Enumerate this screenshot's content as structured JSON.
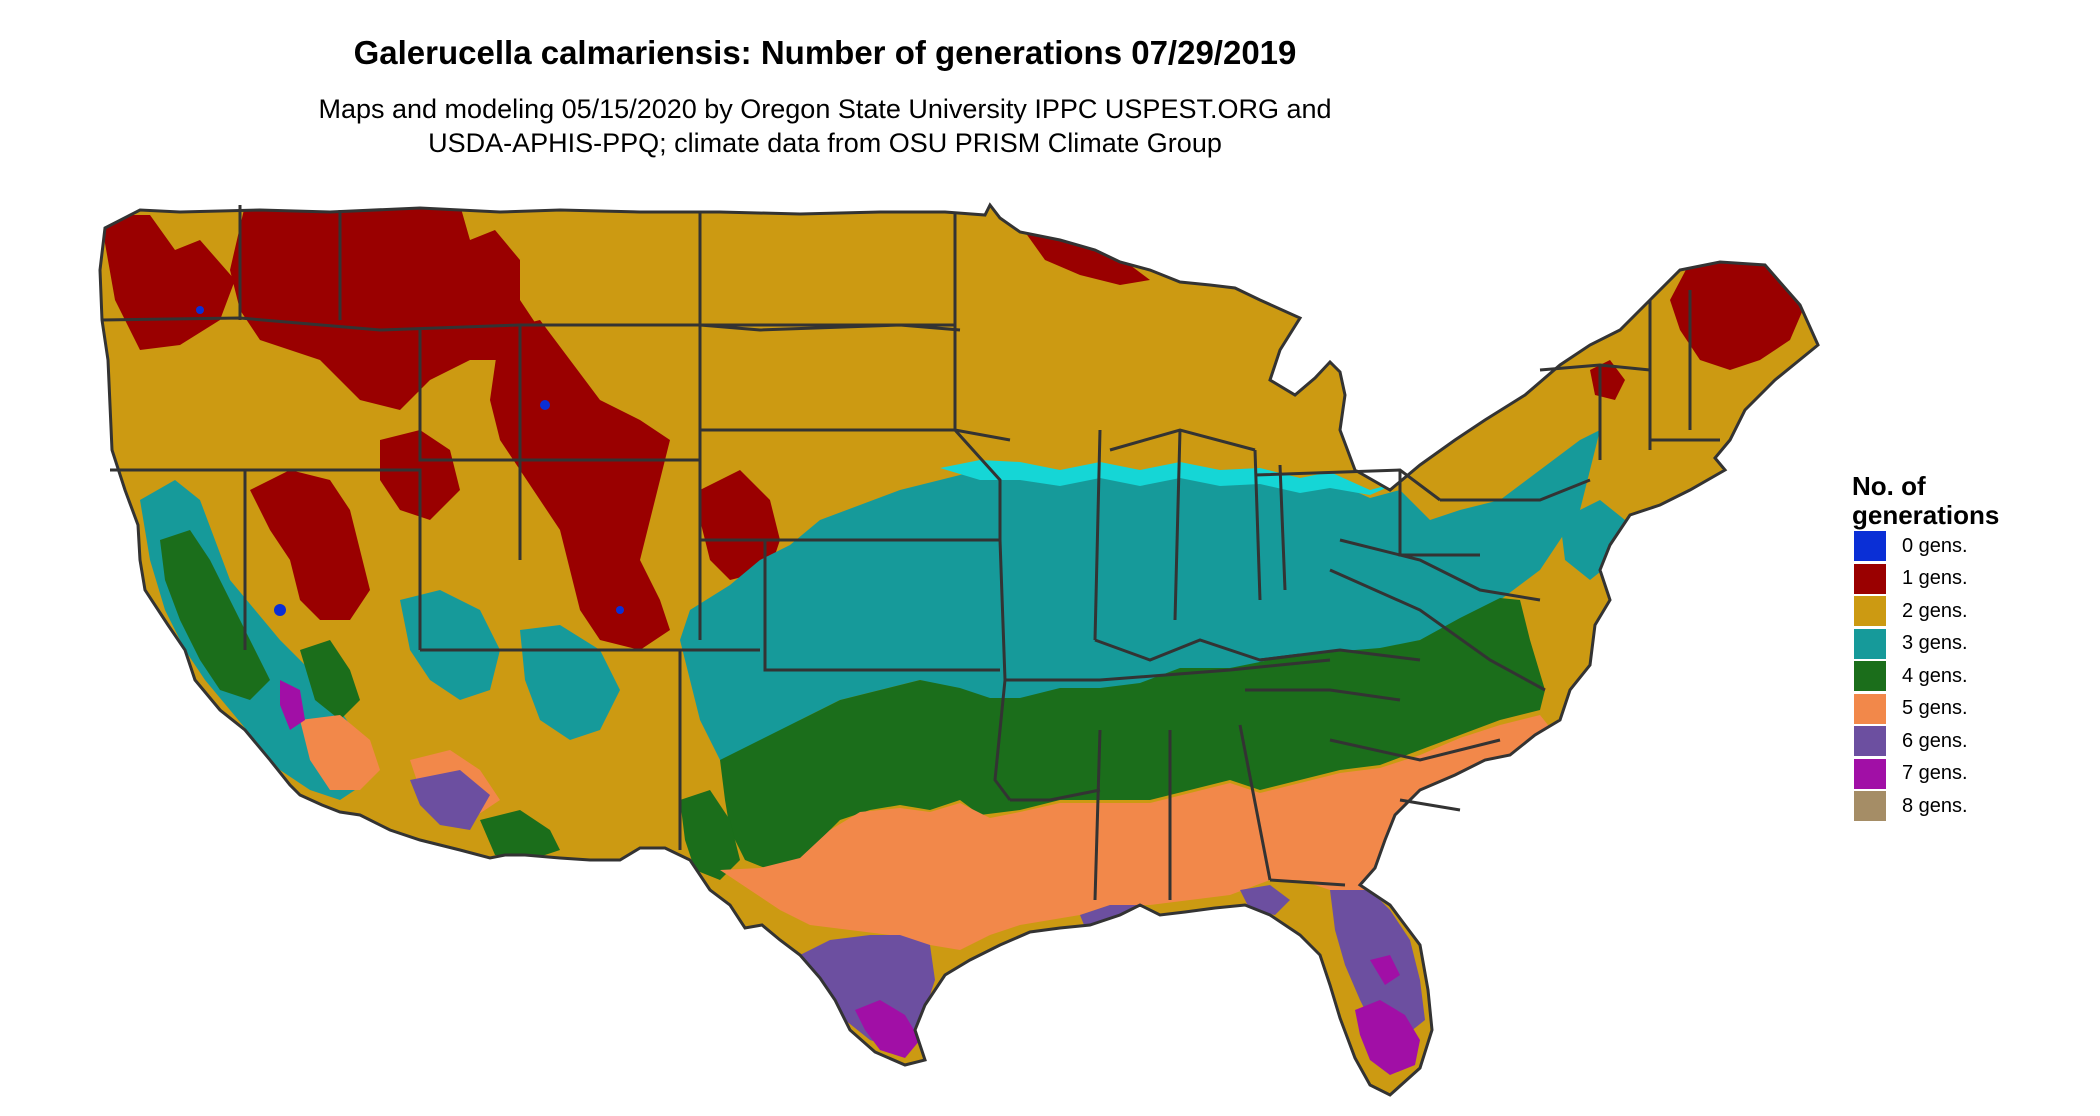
{
  "title": "Galerucella calmariensis: Number of generations 07/29/2019",
  "subtitle_line1": "Maps and modeling 05/15/2020 by Oregon State University IPPC USPEST.ORG and",
  "subtitle_line2": "USDA-APHIS-PPQ; climate data from OSU PRISM Climate Group",
  "legend": {
    "title_line1": "No. of",
    "title_line2": "generations",
    "items": [
      {
        "label": "0 gens.",
        "color": "#0a2fd6"
      },
      {
        "label": "1 gens.",
        "color": "#9a0000"
      },
      {
        "label": "2 gens.",
        "color": "#cc9a12"
      },
      {
        "label": "3 gens.",
        "color": "#169a9a"
      },
      {
        "label": "4 gens.",
        "color": "#1b6e1b"
      },
      {
        "label": "5 gens.",
        "color": "#f2884a"
      },
      {
        "label": "6 gens.",
        "color": "#6c4fa0"
      },
      {
        "label": "7 gens.",
        "color": "#a10fa6"
      },
      {
        "label": "8 gens.",
        "color": "#a58d66"
      }
    ]
  }
}
